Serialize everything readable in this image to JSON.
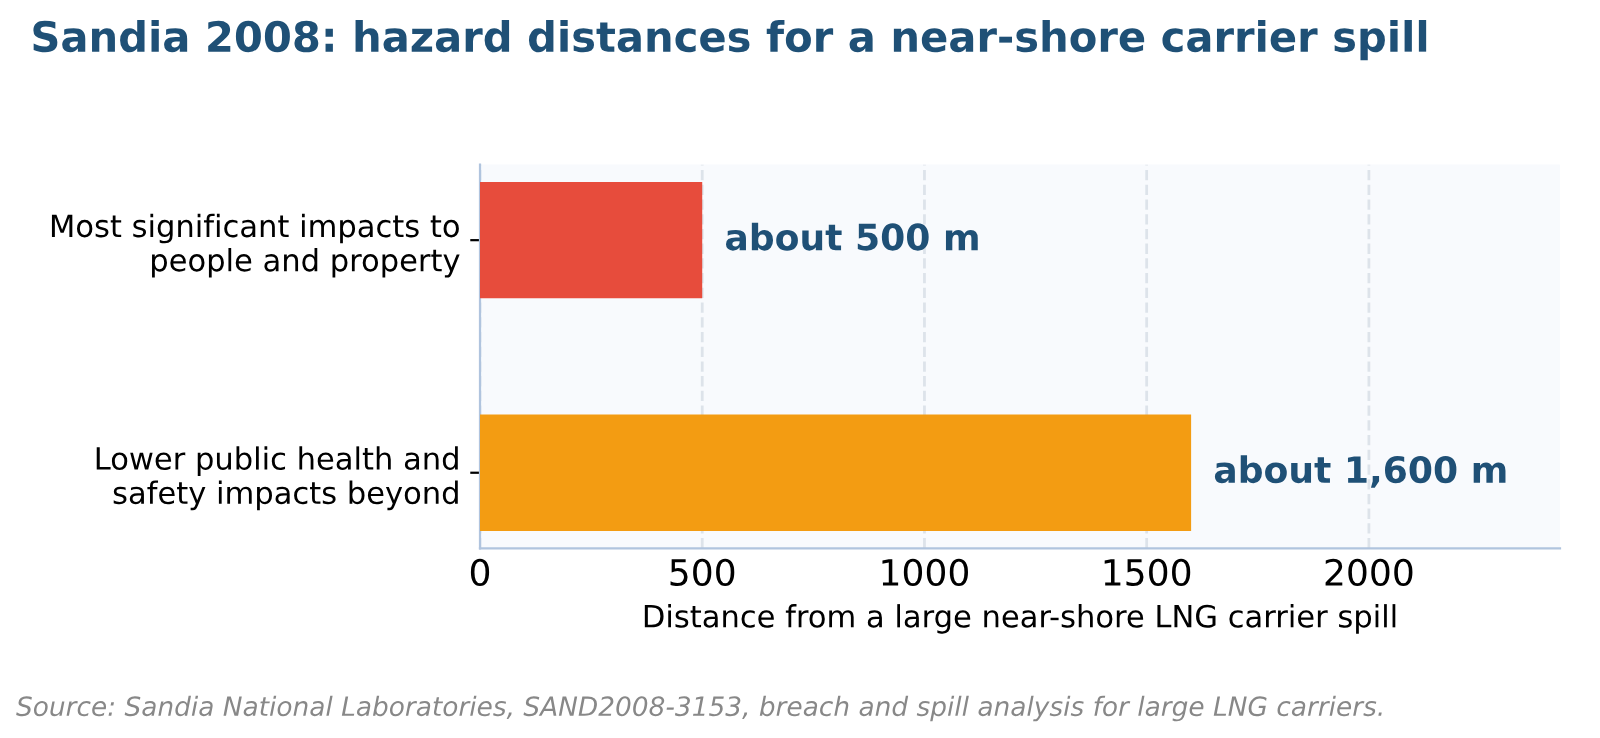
{
  "chart_data": {
    "type": "bar",
    "orientation": "horizontal",
    "title": "Sandia 2008: hazard distances for a near-shore carrier spill",
    "categories": [
      "Most significant impacts to\npeople and property",
      "Lower public health and\nsafety impacts beyond"
    ],
    "values": [
      500,
      1600
    ],
    "colors": [
      "#e74c3c",
      "#f39c12"
    ],
    "value_labels": [
      "about 500 m",
      "about 1,600 m"
    ],
    "xlabel": "Distance from a large near-shore LNG carrier spill",
    "xlim": [
      0,
      2430
    ],
    "xticks": [
      0,
      500,
      1000,
      1500,
      2000
    ],
    "grid": "x",
    "annotations": [
      "Source: Sandia National Laboratories, SAND2008-3153, breach and spill analysis for large LNG carriers."
    ]
  }
}
